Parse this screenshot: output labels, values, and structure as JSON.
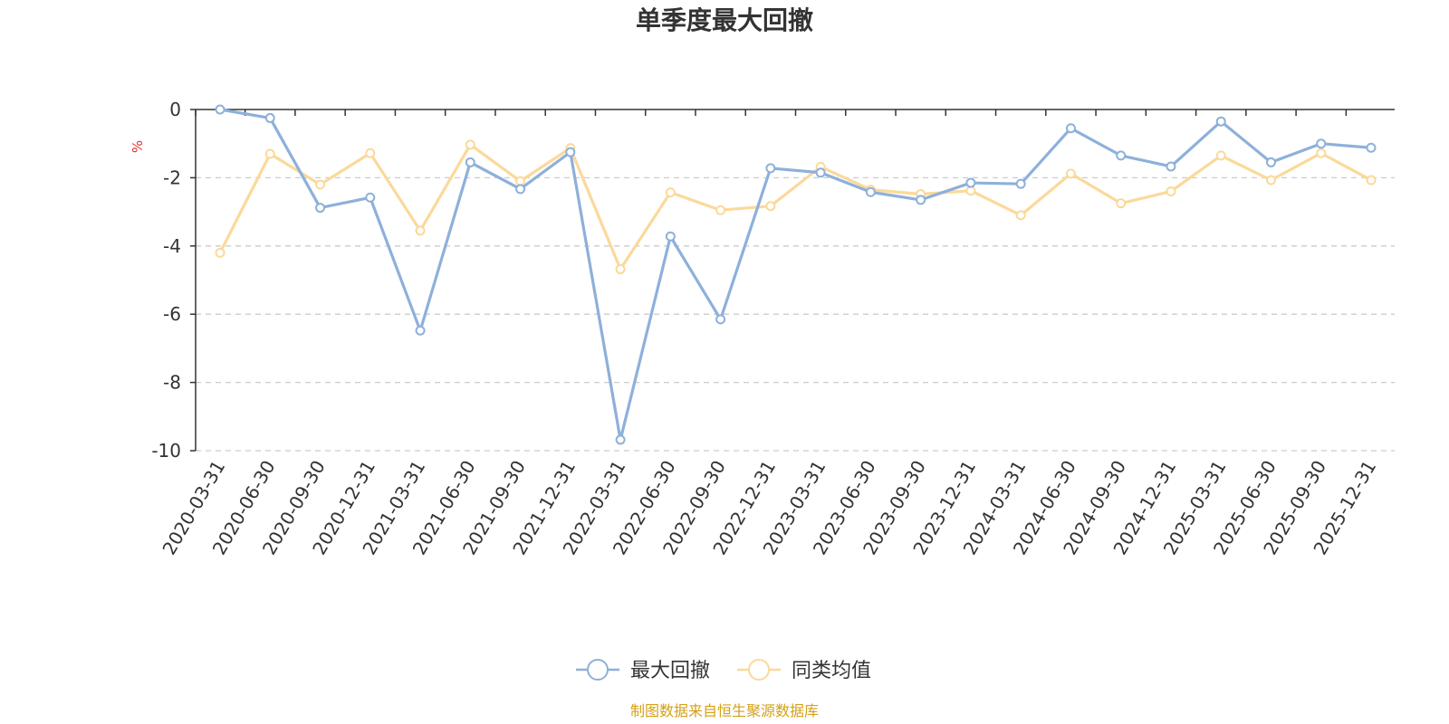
{
  "chart_data": {
    "type": "line",
    "title": "单季度最大回撤",
    "ylabel": "%",
    "xlabel": "",
    "ylim": [
      -10,
      0
    ],
    "yticks": [
      0,
      -2,
      -4,
      -6,
      -8,
      -10
    ],
    "grid": "horizontal dashed",
    "legend_position": "bottom-center",
    "categories": [
      "2020-03-31",
      "2020-06-30",
      "2020-09-30",
      "2020-12-31",
      "2021-03-31",
      "2021-06-30",
      "2021-09-30",
      "2021-12-31",
      "2022-03-31",
      "2022-06-30",
      "2022-09-30",
      "2022-12-31",
      "2023-03-31",
      "2023-06-30",
      "2023-09-30",
      "2023-12-31",
      "2024-03-31",
      "2024-06-30",
      "2024-09-30",
      "2024-12-31",
      "2025-03-31",
      "2025-06-30",
      "2025-09-30",
      "2025-12-31"
    ],
    "series": [
      {
        "name": "最大回撤",
        "color": "#8eb0da",
        "values": [
          0,
          -0.25,
          -2.88,
          -2.58,
          -6.48,
          -1.55,
          -2.33,
          -1.25,
          -9.68,
          -3.72,
          -6.15,
          -1.72,
          -1.85,
          -2.42,
          -2.65,
          -2.15,
          -2.18,
          -0.55,
          -1.35,
          -1.67,
          -0.35,
          -1.55,
          -1.0,
          -1.12
        ]
      },
      {
        "name": "同类均值",
        "color": "#fbd99a",
        "values": [
          -4.2,
          -1.3,
          -2.2,
          -1.28,
          -3.55,
          -1.03,
          -2.1,
          -1.13,
          -4.68,
          -2.43,
          -2.95,
          -2.83,
          -1.68,
          -2.35,
          -2.48,
          -2.38,
          -3.1,
          -1.88,
          -2.75,
          -2.4,
          -1.35,
          -2.07,
          -1.28,
          -2.07
        ]
      }
    ],
    "axis_color": "#333333",
    "grid_color": "#cccccc",
    "ylabel_color": "#e03030"
  },
  "source_text": "制图数据来自恒生聚源数据库",
  "source_color": "#d4a017"
}
